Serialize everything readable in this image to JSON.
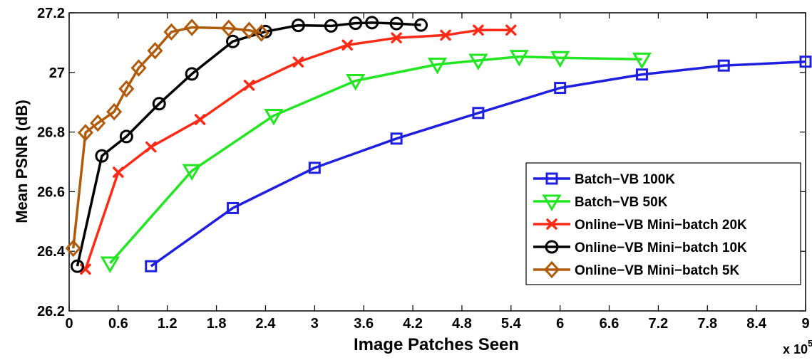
{
  "chart_data": {
    "type": "line",
    "title": "",
    "xlabel": "Image Patches Seen",
    "ylabel": "Mean PSNR (dB)",
    "x_multiplier_label": "x 10",
    "x_multiplier_exp": "5",
    "xlim": [
      0,
      9
    ],
    "ylim": [
      26.2,
      27.2
    ],
    "x_ticks": [
      0,
      0.6,
      1.2,
      1.8,
      2.4,
      3,
      3.6,
      4.2,
      4.8,
      5.4,
      6,
      6.6,
      7.2,
      7.8,
      8.4,
      9
    ],
    "x_tick_labels": [
      "0",
      "0.6",
      "1.2",
      "1.8",
      "2.4",
      "3",
      "3.6",
      "4.2",
      "4.8",
      "5.4",
      "6",
      "6.6",
      "7.2",
      "7.8",
      "8.4",
      "9"
    ],
    "y_ticks": [
      26.2,
      26.4,
      26.6,
      26.8,
      27,
      27.2
    ],
    "y_tick_labels": [
      "26.2",
      "26.4",
      "26.6",
      "26.8",
      "27",
      "27.2"
    ],
    "grid": false,
    "legend_position": "bottom-right",
    "series": [
      {
        "name": "Batch−VB 100K",
        "color": "#1f1fe0",
        "marker": "square",
        "x": [
          1,
          2,
          3,
          4,
          5,
          6,
          7,
          8,
          9
        ],
        "y": [
          26.35,
          26.545,
          26.68,
          26.778,
          26.864,
          26.948,
          26.993,
          27.023,
          27.036
        ]
      },
      {
        "name": "Batch−VB 50K",
        "color": "#22e622",
        "marker": "triangle-down",
        "x": [
          0.5,
          1.5,
          2.5,
          3.5,
          4.5,
          5,
          5.5,
          6,
          7
        ],
        "y": [
          26.36,
          26.67,
          26.855,
          26.972,
          27.027,
          27.04,
          27.053,
          27.049,
          27.044
        ]
      },
      {
        "name": "Online−VB Mini−batch 20K",
        "color": "#ff2a16",
        "marker": "x",
        "x": [
          0.2,
          0.6,
          1.0,
          1.6,
          2.2,
          2.8,
          3.4,
          4.0,
          4.6,
          5.0,
          5.4
        ],
        "y": [
          26.34,
          26.665,
          26.75,
          26.842,
          26.957,
          27.035,
          27.092,
          27.116,
          27.125,
          27.142,
          27.142
        ]
      },
      {
        "name": "Online−VB Mini−batch 10K",
        "color": "#000000",
        "marker": "circle",
        "x": [
          0.1,
          0.4,
          0.7,
          1.1,
          1.5,
          2.0,
          2.4,
          2.8,
          3.2,
          3.5,
          3.7,
          4.0,
          4.3
        ],
        "y": [
          26.35,
          26.72,
          26.785,
          26.895,
          26.995,
          27.104,
          27.137,
          27.158,
          27.156,
          27.165,
          27.167,
          27.164,
          27.159
        ]
      },
      {
        "name": "Online−VB Mini−batch  5K",
        "color": "#b05a0a",
        "marker": "diamond",
        "x": [
          0.05,
          0.2,
          0.35,
          0.55,
          0.7,
          0.85,
          1.05,
          1.25,
          1.5,
          1.95,
          2.2,
          2.35
        ],
        "y": [
          26.41,
          26.798,
          26.83,
          26.868,
          26.945,
          27.015,
          27.073,
          27.136,
          27.151,
          27.148,
          27.141,
          27.132
        ]
      }
    ]
  }
}
